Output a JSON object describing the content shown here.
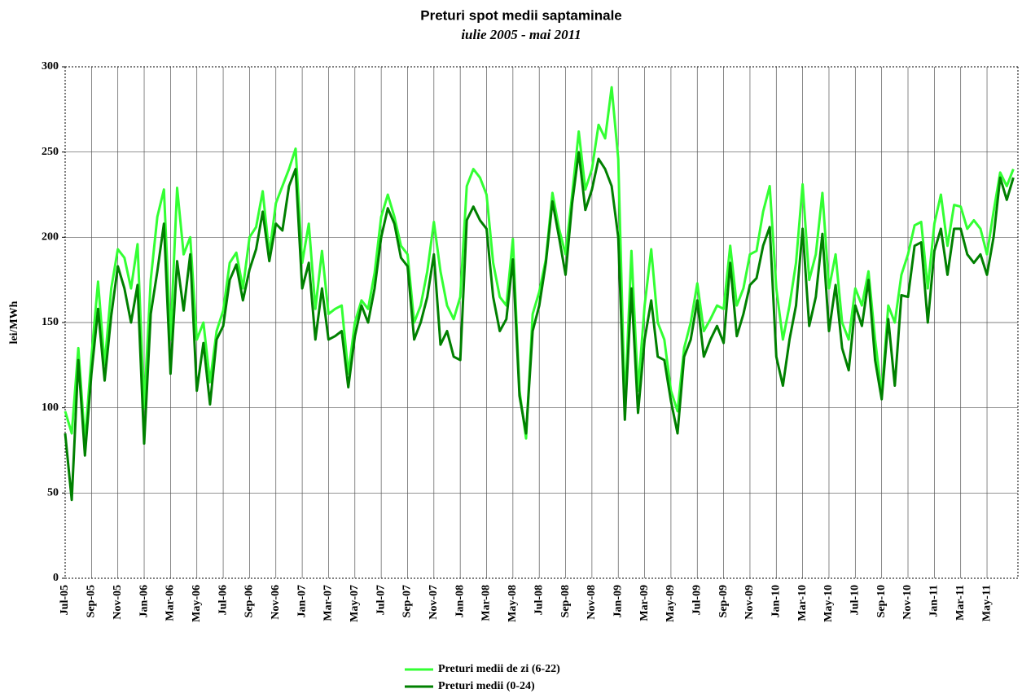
{
  "chart_data": {
    "type": "line",
    "title": "Preturi spot medii saptaminale",
    "subtitle": "iulie 2005 - mai 2011",
    "y_label": "lei/MWh",
    "categories": [
      "Jul-05",
      null,
      null,
      null,
      "Sep-05",
      null,
      null,
      null,
      "Nov-05",
      null,
      null,
      null,
      "Jan-06",
      null,
      null,
      null,
      "Mar-06",
      null,
      null,
      null,
      "May-06",
      null,
      null,
      null,
      "Jul-06",
      null,
      null,
      null,
      "Sep-06",
      null,
      null,
      null,
      "Nov-06",
      null,
      null,
      null,
      "Jan-07",
      null,
      null,
      null,
      "Mar-07",
      null,
      null,
      null,
      "May-07",
      null,
      null,
      null,
      "Jul-07",
      null,
      null,
      null,
      "Sep-07",
      null,
      null,
      null,
      "Nov-07",
      null,
      null,
      null,
      "Jan-08",
      null,
      null,
      null,
      "Mar-08",
      null,
      null,
      null,
      "May-08",
      null,
      null,
      null,
      "Jul-08",
      null,
      null,
      null,
      "Sep-08",
      null,
      null,
      null,
      "Nov-08",
      null,
      null,
      null,
      "Jan-09",
      null,
      null,
      null,
      "Mar-09",
      null,
      null,
      null,
      "May-09",
      null,
      null,
      null,
      "Jul-09",
      null,
      null,
      null,
      "Sep-09",
      null,
      null,
      null,
      "Nov-09",
      null,
      null,
      null,
      "Jan-10",
      null,
      null,
      null,
      "Mar-10",
      null,
      null,
      null,
      "May-10",
      null,
      null,
      null,
      "Jul-10",
      null,
      null,
      null,
      "Sep-10",
      null,
      null,
      null,
      "Nov-10",
      null,
      null,
      null,
      "Jan-11",
      null,
      null,
      null,
      "Mar-11",
      null,
      null,
      null,
      "May-11",
      null,
      null,
      null,
      null
    ],
    "series": [
      {
        "name": "Preturi medii de zi (6-22)",
        "color": "#33ff33",
        "values": [
          98,
          85,
          135,
          80,
          130,
          174,
          125,
          170,
          193,
          188,
          170,
          196,
          100,
          175,
          212,
          228,
          140,
          229,
          190,
          200,
          140,
          150,
          115,
          145,
          157,
          185,
          191,
          170,
          200,
          206,
          227,
          190,
          220,
          230,
          240,
          252,
          185,
          208,
          158,
          192,
          155,
          158,
          160,
          120,
          150,
          163,
          158,
          179,
          212,
          225,
          212,
          195,
          190,
          150,
          160,
          180,
          209,
          180,
          160,
          152,
          165,
          230,
          240,
          235,
          225,
          185,
          165,
          160,
          199,
          110,
          82,
          155,
          168,
          187,
          226,
          205,
          190,
          225,
          262,
          228,
          240,
          266,
          258,
          288,
          246,
          100,
          192,
          110,
          160,
          193,
          150,
          140,
          110,
          98,
          135,
          150,
          173,
          145,
          152,
          160,
          158,
          195,
          160,
          170,
          190,
          192,
          215,
          230,
          170,
          140,
          160,
          185,
          231,
          175,
          190,
          226,
          170,
          190,
          150,
          140,
          170,
          160,
          180,
          140,
          108,
          160,
          150,
          178,
          190,
          207,
          209,
          170,
          208,
          225,
          195,
          219,
          218,
          205,
          210,
          205,
          190,
          215,
          238,
          230,
          240
        ]
      },
      {
        "name": "Preturi medii (0-24)",
        "color": "#008000",
        "values": [
          85,
          46,
          128,
          72,
          120,
          158,
          116,
          154,
          183,
          170,
          150,
          172,
          79,
          155,
          180,
          208,
          120,
          186,
          157,
          190,
          110,
          138,
          102,
          140,
          148,
          175,
          184,
          163,
          181,
          193,
          215,
          186,
          208,
          204,
          230,
          240,
          170,
          185,
          140,
          170,
          140,
          142,
          145,
          112,
          142,
          160,
          150,
          170,
          200,
          217,
          208,
          188,
          183,
          140,
          150,
          165,
          190,
          137,
          145,
          130,
          128,
          210,
          218,
          210,
          205,
          165,
          145,
          152,
          187,
          107,
          85,
          145,
          160,
          185,
          221,
          200,
          178,
          220,
          250,
          216,
          228,
          246,
          240,
          230,
          200,
          93,
          170,
          97,
          140,
          163,
          130,
          128,
          104,
          85,
          130,
          140,
          163,
          130,
          140,
          148,
          138,
          185,
          142,
          155,
          172,
          176,
          195,
          206,
          130,
          113,
          140,
          160,
          205,
          148,
          165,
          202,
          145,
          172,
          135,
          122,
          160,
          148,
          175,
          128,
          105,
          152,
          113,
          166,
          165,
          195,
          197,
          150,
          192,
          205,
          178,
          205,
          205,
          190,
          185,
          190,
          178,
          200,
          235,
          222,
          235
        ]
      }
    ],
    "ylim": [
      0,
      300
    ],
    "yticks": [
      0,
      50,
      100,
      150,
      200,
      250,
      300
    ],
    "grid": true
  }
}
